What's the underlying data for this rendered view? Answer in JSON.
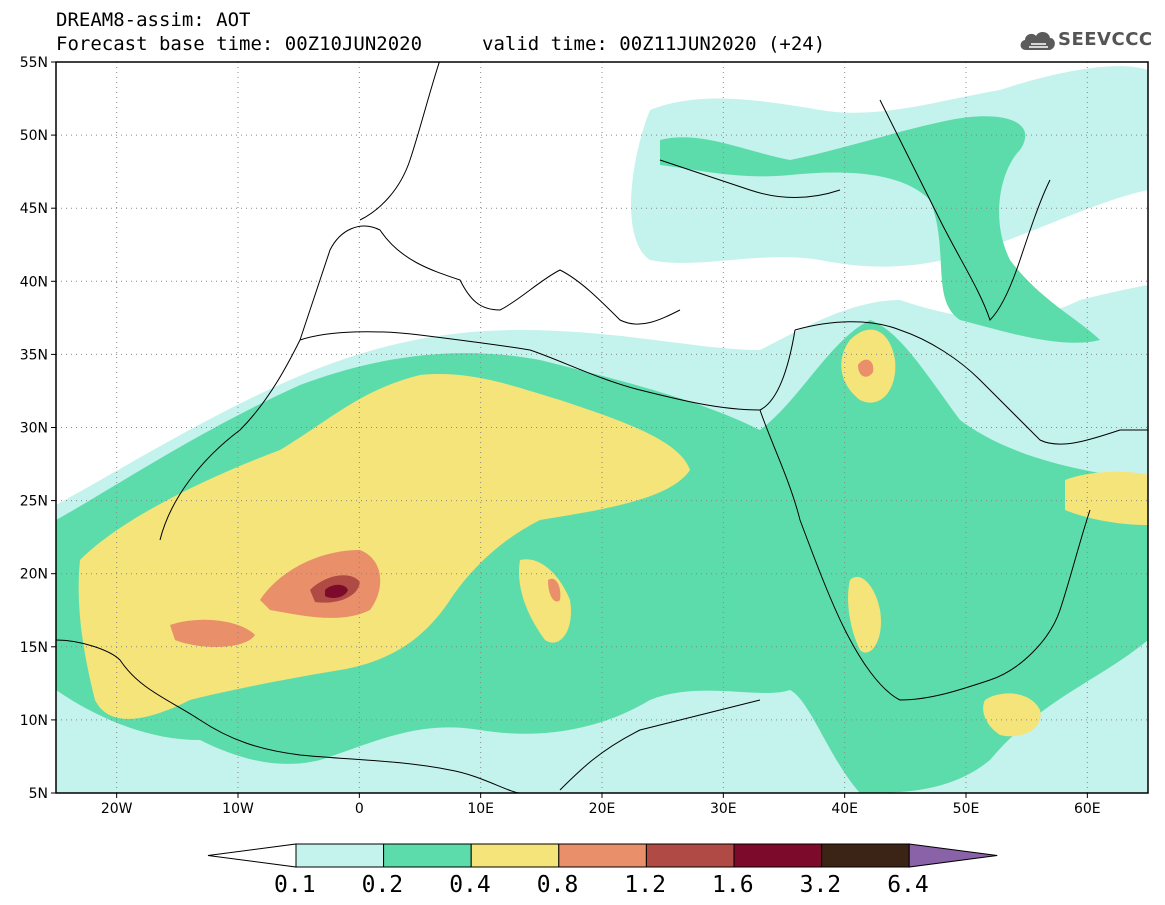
{
  "header": {
    "title": "DREAM8-assim: AOT",
    "base_time": "Forecast base time: 00Z10JUN2020",
    "valid_time": "valid time: 00Z11JUN2020 (+24)",
    "logo_text": "SEEVCCC"
  },
  "map": {
    "lon_range": [
      -25,
      65
    ],
    "lat_range": [
      5,
      55
    ],
    "y_ticks": [
      {
        "lat": 55,
        "label": "55N"
      },
      {
        "lat": 50,
        "label": "50N"
      },
      {
        "lat": 45,
        "label": "45N"
      },
      {
        "lat": 40,
        "label": "40N"
      },
      {
        "lat": 35,
        "label": "35N"
      },
      {
        "lat": 30,
        "label": "30N"
      },
      {
        "lat": 25,
        "label": "25N"
      },
      {
        "lat": 20,
        "label": "20N"
      },
      {
        "lat": 15,
        "label": "15N"
      },
      {
        "lat": 10,
        "label": "10N"
      },
      {
        "lat": 5,
        "label": "5N"
      }
    ],
    "x_ticks": [
      {
        "lon": -20,
        "label": "20W"
      },
      {
        "lon": -10,
        "label": "10W"
      },
      {
        "lon": 0,
        "label": "0"
      },
      {
        "lon": 10,
        "label": "10E"
      },
      {
        "lon": 20,
        "label": "20E"
      },
      {
        "lon": 30,
        "label": "30E"
      },
      {
        "lon": 40,
        "label": "40E"
      },
      {
        "lon": 50,
        "label": "50E"
      },
      {
        "lon": 60,
        "label": "60E"
      }
    ]
  },
  "legend": {
    "levels": [
      "0.1",
      "0.2",
      "0.4",
      "0.8",
      "1.2",
      "1.6",
      "3.2",
      "6.4"
    ],
    "colors": [
      "#c4f2ec",
      "#5ddcab",
      "#f4e47a",
      "#e98f6a",
      "#b04a44",
      "#7c0a2a",
      "#3b2416",
      "#8a62a8"
    ]
  }
}
